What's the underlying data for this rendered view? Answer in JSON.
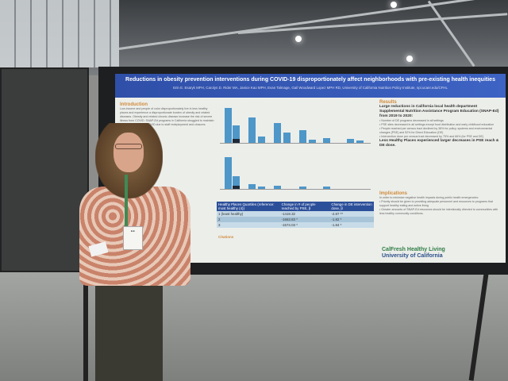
{
  "poster": {
    "title": "Reductions in obesity prevention interventions during COVID-19 disproportionately affect neighborhoods with pre-existing health inequities",
    "authors": "Erin E. Esaryk MPH, Carolyn D. Rider MA, Janice Kao MPH, Evan Talmage, Gail Woodward Lopez MPH RD, University of California Nutrition Policy Institute,  npi.ucanr.edu/CFHL",
    "intro_heading": "Introduction",
    "intro_text": "Low-income and people of color disproportionately live in less healthy places and experience a disproportionate burden of obesity and related diseases. Obesity and related chronic disease increase the risk of severe illness from COVID. SNAP-Ed programs in California struggled to maintain programming during COVID due to staff redeployment and closures.",
    "results_heading": "Results",
    "results_lead": "Large reductions in California local health department Supplemental Nutrition Assistance Program Education (SNAP-Ed) from 2019 to 2020:",
    "results_bullets": [
      "Number of DE programs decreased in all settings",
      "PSE sites decreased in all settings except food distribution and early childhood education",
      "People reached per census tract declined by 38% for policy, systems and environmental changes (PSE) and 52% for Direct Education (DE)",
      "Intervention dose per census tract decreased by 75% and 66% (for PSE and DE)"
    ],
    "results_conclusion": "Less Healthy Places experienced larger decreases in PSE reach & DE dose.",
    "implications_heading": "Implications",
    "implications_lead": "In order to minimize negative health impacts during public health emergencies:",
    "implications_bullets": [
      "Priority should be given to providing adequate personnel and resources to programs that support healthy eating and active living",
      "Greater amounts of SNAP-Ed resources should be intentionally directed to communities with less healthy community conditions."
    ],
    "table": {
      "headers": [
        "Healthy Places Quartiles (reference: most healthy (4))",
        "Change in # of people reached by PSE, β",
        "Change in DE intervention dose, β"
      ],
      "rows": [
        [
          "1 (least healthy)",
          "-1419.32",
          "-2.87 **"
        ],
        [
          "2",
          "-1663.83 *",
          "-1.82 *"
        ],
        [
          "3",
          "-1574.03 *",
          "-1.84 *"
        ]
      ]
    },
    "citations_heading": "Citations",
    "logos": [
      "CalFresh Healthy Living",
      "University of California"
    ]
  },
  "badge_text": "Erin"
}
